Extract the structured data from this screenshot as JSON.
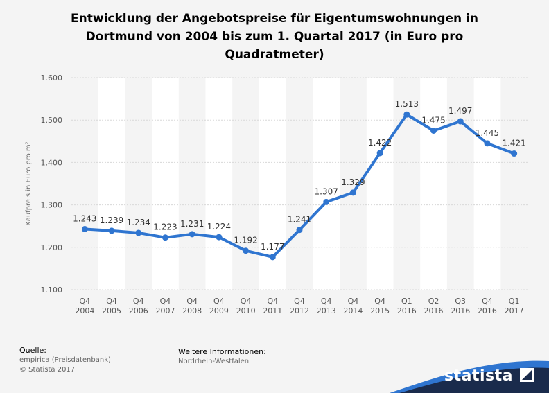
{
  "title": "Entwicklung der Angebotspreise für Eigentumswohnungen in Dortmund von 2004 bis zum 1. Quartal 2017 (in Euro pro Quadratmeter)",
  "footer": {
    "source_label": "Quelle:",
    "source_line1": "empirica (Preisdatenbank)",
    "source_line2": "© Statista 2017",
    "info_label": "Weitere Informationen:",
    "info_text": "Nordrhein-Westfalen"
  },
  "logo": {
    "text": "statista"
  },
  "colors": {
    "line": "#2f75d0",
    "background": "#f4f4f4",
    "band": "#ffffff",
    "brand": "#1a2b4c"
  },
  "chart_data": {
    "type": "line",
    "ylabel": "Kaufpreis in Euro pro m²",
    "xlabel": "",
    "ylim": [
      1100,
      1600
    ],
    "yticks": [
      1100,
      1200,
      1300,
      1400,
      1500,
      1600
    ],
    "ytick_labels": [
      "1.100",
      "1.200",
      "1.300",
      "1.400",
      "1.500",
      "1.600"
    ],
    "grid": true,
    "categories": [
      [
        "Q4",
        "2004"
      ],
      [
        "Q4",
        "2005"
      ],
      [
        "Q4",
        "2006"
      ],
      [
        "Q4",
        "2007"
      ],
      [
        "Q4",
        "2008"
      ],
      [
        "Q4",
        "2009"
      ],
      [
        "Q4",
        "2010"
      ],
      [
        "Q4",
        "2011"
      ],
      [
        "Q4",
        "2012"
      ],
      [
        "Q4",
        "2013"
      ],
      [
        "Q4",
        "2014"
      ],
      [
        "Q4",
        "2015"
      ],
      [
        "Q1",
        "2016"
      ],
      [
        "Q2",
        "2016"
      ],
      [
        "Q3",
        "2016"
      ],
      [
        "Q4",
        "2016"
      ],
      [
        "Q1",
        "2017"
      ]
    ],
    "values": [
      1243,
      1239,
      1234,
      1223,
      1231,
      1224,
      1192,
      1177,
      1241,
      1307,
      1329,
      1422,
      1513,
      1475,
      1497,
      1445,
      1421
    ],
    "value_labels": [
      "1.243",
      "1.239",
      "1.234",
      "1.223",
      "1.231",
      "1.224",
      "1.192",
      "1.177",
      "1.241",
      "1.307",
      "1.329",
      "1.422",
      "1.513",
      "1.475",
      "1.497",
      "1.445",
      "1.421"
    ]
  }
}
